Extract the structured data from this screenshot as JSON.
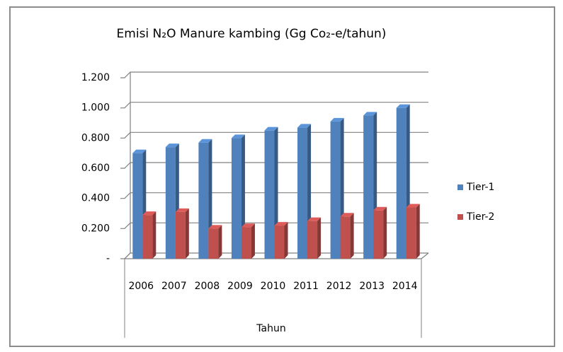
{
  "chart_data": {
    "type": "bar3d",
    "title": "Emisi N₂O Manure kambing (Gg Co₂-e/tahun)",
    "x_label": "Tahun",
    "categories": [
      "2006",
      "2007",
      "2008",
      "2009",
      "2010",
      "2011",
      "2012",
      "2013",
      "2014"
    ],
    "series": [
      {
        "name": "Tier-1",
        "color": "#4f81bd",
        "values": [
          0.7,
          0.74,
          0.77,
          0.8,
          0.85,
          0.87,
          0.91,
          0.95,
          1.0
        ]
      },
      {
        "name": "Tier-2",
        "color": "#c0504d",
        "values": [
          0.29,
          0.31,
          0.2,
          0.21,
          0.22,
          0.25,
          0.28,
          0.32,
          0.34
        ]
      }
    ],
    "ylim": [
      0,
      1.2
    ],
    "yticks": [
      {
        "value": 0,
        "label": "-"
      },
      {
        "value": 0.2,
        "label": "0.200"
      },
      {
        "value": 0.4,
        "label": "0.400"
      },
      {
        "value": 0.6,
        "label": "0.600"
      },
      {
        "value": 0.8,
        "label": "0.800"
      },
      {
        "value": 1.0,
        "label": "1.000"
      },
      {
        "value": 1.2,
        "label": "1.200"
      }
    ],
    "grid": true,
    "legend": "right"
  }
}
